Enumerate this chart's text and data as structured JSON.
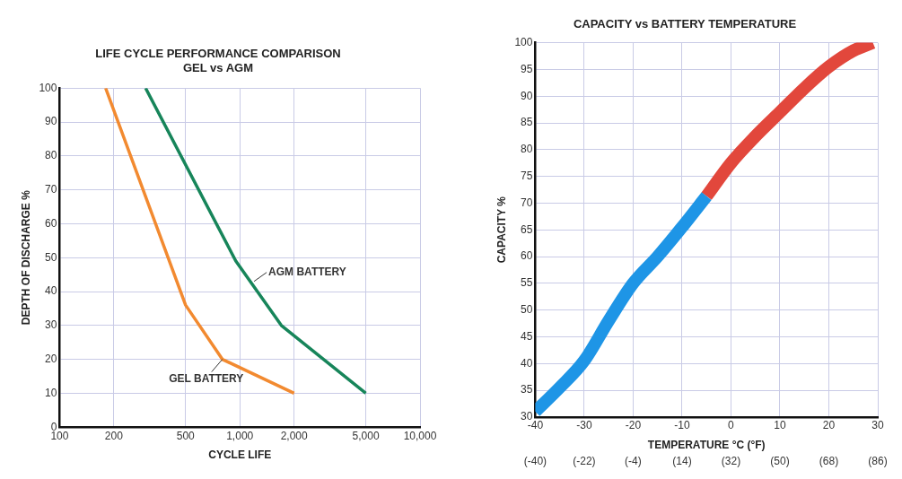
{
  "chart_data": [
    {
      "type": "line",
      "title": "LIFE CYCLE PERFORMANCE COMPARISON",
      "subtitle": "GEL vs AGM",
      "xlabel": "CYCLE LIFE",
      "ylabel": "DEPTH OF DISCHARGE %",
      "log": "x",
      "xlim": [
        100,
        10000
      ],
      "xticks": [
        100,
        200,
        500,
        {
          "value": 1000,
          "label": "1,000"
        },
        {
          "value": 2000,
          "label": "2,000"
        },
        {
          "value": 5000,
          "label": "5,000"
        },
        {
          "value": 10000,
          "label": "10,000"
        }
      ],
      "ylim": [
        0,
        100
      ],
      "yticks": [
        0,
        10,
        20,
        30,
        40,
        50,
        60,
        70,
        80,
        90,
        100
      ],
      "grid": true,
      "legend": false,
      "marker": "none",
      "line_style": "solid",
      "series": [
        {
          "color": "#f28a30",
          "x": [
            180,
            500,
            800,
            2000
          ],
          "values": [
            100,
            36,
            20,
            10
          ]
        },
        {
          "color": "#17855a",
          "x": [
            300,
            950,
            1700,
            5000
          ],
          "values": [
            100,
            49,
            30,
            10
          ]
        }
      ],
      "annotations": [
        {
          "text": "AGM BATTERY",
          "x": 1200,
          "y": 43
        },
        {
          "text": "GEL BATTERY",
          "x": 800,
          "y": 20
        }
      ]
    },
    {
      "type": "line",
      "title": "CAPACITY vs BATTERY TEMPERATURE",
      "xlabel": "TEMPERATURE °C (°F)",
      "ylabel": "CAPACITY %",
      "xlim": [
        -40,
        30
      ],
      "xticks": [
        -40,
        -30,
        -20,
        -10,
        0,
        10,
        20,
        30
      ],
      "x2lim": [
        -40,
        86
      ],
      "x2ticks": [
        {
          "value": -40,
          "label": "(-40)"
        },
        {
          "value": -22,
          "label": "(-22)"
        },
        {
          "value": -4,
          "label": "(-4)"
        },
        {
          "value": 14,
          "label": "(14)"
        },
        {
          "value": 32,
          "label": "(32)"
        },
        {
          "value": 50,
          "label": "(50)"
        },
        {
          "value": 68,
          "label": "(68)"
        },
        {
          "value": 86,
          "label": "(86)"
        }
      ],
      "ylim": [
        30,
        100
      ],
      "yticks": [
        30,
        35,
        40,
        45,
        50,
        55,
        60,
        65,
        70,
        75,
        80,
        85,
        90,
        95,
        100
      ],
      "grid": true,
      "legend": false,
      "marker": "none",
      "line_style": "solid",
      "series": [
        {
          "color": "#1e95e6",
          "x": [
            -40,
            -35,
            -30,
            -25,
            -20,
            -15,
            -10,
            -5
          ],
          "values": [
            31,
            35.5,
            40.5,
            48,
            55,
            60,
            65.5,
            71.3
          ]
        },
        {
          "color": "#e2473c",
          "x": [
            -5,
            0,
            5,
            10,
            15,
            20,
            25,
            29
          ],
          "values": [
            71.3,
            77.5,
            82.5,
            87,
            91.5,
            95.5,
            98.5,
            100
          ]
        }
      ]
    }
  ]
}
